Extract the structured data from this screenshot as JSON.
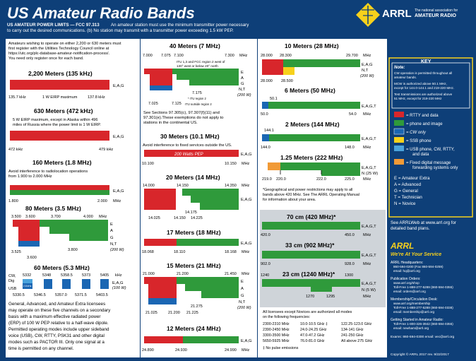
{
  "header": {
    "title": "US Amateur Radio Bands",
    "limits_label": "US AMATEUR POWER LIMITS — FCC 97.313",
    "limits_text_1": "An amateur station must use the minimum transmitter power necessary",
    "limits_text_2": "to carry out the desired communications.  (b) No station may transmit with a transmitter power exceeding 1.5 kW PEP.",
    "logo": "ARRL",
    "org_line1": "The national association for",
    "org_line2": "AMATEUR RADIO"
  },
  "colors": {
    "rtty": "#d8262b",
    "phone": "#2f9a3b",
    "cw": "#1a66b3",
    "ssb": "#f7d11c",
    "usb": "#4aa3dc",
    "digital": "#f19a36",
    "page": "#0e3f78",
    "panel": "#ffffff",
    "accent": "#f7d11c"
  },
  "intro": [
    "Amateurs wishing to operate on either 2,200 or 630 meters must",
    "first register with the Utilities Technology Council online at",
    "https://utc.org/plc-database-amateur-notification-process/.",
    "You need only register once for each band."
  ],
  "bands": {
    "m2200": {
      "title": "2,200 Meters (135 kHz)",
      "lo": "135.7 kHz",
      "hi": "137.8 kHz",
      "note": "1 W EIRP maximum",
      "lic": "E,A,G"
    },
    "m630": {
      "title": "630 Meters (472 kHz)",
      "note1": "5 W EIRP maximum, except in Alaska within 496",
      "note2": "miles of Russia where the power limit is 1 W EIRP.",
      "lo": "472 kHz",
      "hi": "479 kHz",
      "lic": "E,A,G"
    },
    "m160": {
      "title": "160 Meters (1.8 MHz)",
      "note1": "Avoid interference to radiolocation operations",
      "note2": "from 1.900 to 2.000 MHz",
      "lo": "1.800",
      "hi": "2.000",
      "unit": "MHz",
      "lic": "E,A,G"
    },
    "m80": {
      "title": "80 Meters (3.5 MHz)",
      "f1": "3.500",
      "f2": "3.600",
      "f3": "3.700",
      "f4": "4.000",
      "unit": "MHz",
      "lic": [
        "E",
        "A",
        "G",
        "N,T"
      ],
      "power": "(200 W)",
      "low1": "3.525",
      "low2": "3.600",
      "low3": "3.800"
    },
    "m60": {
      "title": "60 Meters (5.3 MHz)",
      "cw": "CW,",
      "dig": "Dig",
      "usb": "USB",
      "ch": [
        "5332",
        "5348",
        "5358.5",
        "5373",
        "5405"
      ],
      "unit": "kHz",
      "low": [
        "5330.5",
        "5346.5",
        "5357.0",
        "5371.5",
        "5403.5"
      ],
      "lic": "E,A,G",
      "power": "(100 W)",
      "tag": "2.8 kHz",
      "text": [
        "General, Advanced, and Amateur Extra licensees",
        "may operate on these five channels on a secondary",
        "basis with a maximum effective radiated power",
        "(ERP) of 100 W PEP relative to a half-wave dipole.",
        "Permitted operating modes include upper sideband",
        "voice (USB), CW, RTTY, PSK31 and other digital",
        "modes such as PACTOR III. Only one signal at a",
        "time is permitted on any channel."
      ]
    },
    "m40": {
      "title": "40 Meters (7 MHz)",
      "f1": "7.000",
      "f2": "7.075",
      "f3": "7.100",
      "f4": "7.300",
      "unit": "MHz",
      "itu": [
        "ITU 1,3 and FCC region 2 west of",
        "130° west or below 20° north"
      ],
      "lic": [
        "E",
        "A",
        "G",
        "N,T"
      ],
      "power": "(200 W)",
      "low1": "7.025",
      "low2": "7.125",
      "low3": "7.175",
      "notr2": "* ITU region 2",
      "out": "ITU outside region 2",
      "text": [
        "See Sections 97.305(c), 97.307(f)(11) and",
        "97.301(e).These exemptions do not apply to",
        "stations in the continental US."
      ]
    },
    "m30": {
      "title": "30 Meters (10.1 MHz)",
      "note": "Avoid interference to fixed services outside the US.",
      "pep": "200 Watts PEP",
      "lo": "10.100",
      "hi": "10.150",
      "unit": "MHz",
      "lic": "E,A,G"
    },
    "m20": {
      "title": "20 Meters (14 MHz)",
      "f1": "14.000",
      "f2": "14.150",
      "f3": "14.350",
      "unit": "MHz",
      "lic": "E,A,G",
      "low1": "14.025",
      "low2": "14.150",
      "low3": "14.225",
      "low4": "14.175"
    },
    "m17": {
      "title": "17 Meters (18 MHz)",
      "lo": "18.068",
      "mid": "18.110",
      "hi": "18.168",
      "unit": "MHz",
      "lic": "E,A,G"
    },
    "m15": {
      "title": "15 Meters (21 MHz)",
      "f1": "21.000",
      "f2": "21.200",
      "f3": "21.450",
      "unit": "MHz",
      "lic": [
        "E",
        "A",
        "G",
        "N,T"
      ],
      "power": "(200 W)",
      "low1": "21.025",
      "low2": "21.200",
      "low3": "21.225",
      "low4": "21.275"
    },
    "m12": {
      "title": "12 Meters (24 MHz)",
      "lo": "24.890",
      "mid": "24.930",
      "hi": "24.990",
      "unit": "MHz",
      "lic": "E,A,G"
    },
    "m10": {
      "title": "10 Meters (28 MHz)",
      "f1": "28.000",
      "f2": "28.300",
      "f3": "29.700",
      "unit": "MHz",
      "lic": [
        "E,A,G",
        "N,T"
      ],
      "power": "(200 W)",
      "low1": "28.000",
      "low2": "28.500"
    },
    "m6": {
      "title": "6 Meters (50 MHz)",
      "f1": "50.1",
      "lo": "50.0",
      "hi": "54.0",
      "unit": "MHz",
      "lic": "E,A,G,T"
    },
    "m2": {
      "title": "2 Meters (144 MHz)",
      "f1": "144.1",
      "lo": "144.0",
      "hi": "148.0",
      "unit": "MHz",
      "lic": "E,A,G,T"
    },
    "m125": {
      "title": "1.25 Meters (222 MHz)",
      "f1": "219.0",
      "f2": "220.0",
      "f3": "222.0",
      "f4": "225.0",
      "unit": "MHz",
      "lic": [
        "E,A,G,T",
        "N (25 W)"
      ]
    },
    "m70": {
      "title": "70 cm (420 MHz)*",
      "lo": "420.0",
      "hi": "450.0",
      "unit": "MHz",
      "lic": "E,A,G,T"
    },
    "m33": {
      "title": "33 cm (902 MHz)*",
      "lo": "902.0",
      "hi": "928.0",
      "unit": "MHz",
      "lic": "E,A,G,T"
    },
    "m23": {
      "title": "23 cm (1240 MHz)*",
      "lo": "1240",
      "f2": "1270",
      "f3": "1295",
      "hi": "1300",
      "unit": "MHz",
      "lic": [
        "E,A,G,T",
        "N (5 W)"
      ]
    }
  },
  "geo_note": [
    "*Geographical and power restrictions may apply to all",
    "bands above 420 MHz. See The ARRL Operating Manual",
    "for information about your area."
  ],
  "above": {
    "title1": "All licensees except Novices are authorized all modes",
    "title2": "on the following frequencies:",
    "rows": [
      [
        "2300-2310 MHz",
        "10.0-10.5 GHz ‡",
        "122.25-123.0 GHz"
      ],
      [
        "2390-2450 MHz",
        "24.0-24.25 GHz",
        "134-141 GHz"
      ],
      [
        "3300-3500 MHz",
        "47.0-47.2 GHz",
        "241-250 GHz"
      ],
      [
        "5650-5925 MHz",
        "76.0-81.0 GHz",
        "All above 275 GHz"
      ]
    ],
    "foot": "‡ No pulse emissions"
  },
  "key": {
    "title": "KEY",
    "note_title": "Note:",
    "notes": [
      "CW operation is permitted throughout all",
      "amateur bands.",
      "MCW is authorized above 50.1 MHz,",
      "except for 144.0-144.1 and 219-220 MHz.",
      "Test transmissions are authorized above",
      "51 MHz, except for 219-220 MHz"
    ],
    "items": [
      "= RTTY and data",
      "= phone and image",
      "= CW only",
      "= SSB phone",
      "= USB phone, CW, RTTY,",
      "and data",
      "= Fixed digital message",
      "forwarding systems only"
    ],
    "classes": [
      "E = Amateur Extra",
      "A = Advanced",
      "G = General",
      "T = Technician",
      "N = Novice"
    ],
    "see1": "See ARRLWeb at www.arrl.org for",
    "see2": "detailed band plans."
  },
  "service": {
    "title": "ARRL",
    "subtitle": "We're At Your Service",
    "hq": "ARRL Headquarters:",
    "hq_phone": "860-594-0200 (Fax 860-594-0259)",
    "hq_email": "email: hq@arrl.org",
    "pub": "Publication Orders:",
    "pub_web": "www.arrl.org/shop",
    "pub_phone": "Toll-Free 1-888-277-5289 (860-594-0355)",
    "pub_email": "email: orders@arrl.org",
    "mem": "Membership/Circulation Desk:",
    "mem_web": "www.arrl.org/membership",
    "mem_phone": "Toll-Free 1-888-277-5289 (860-594-0338)",
    "mem_email": "email: membership@arrl.org",
    "gs": "Getting Started in Amateur Radio:",
    "gs_phone": "Toll-Free 1-800-326-3942 (860-594-0355)",
    "gs_email": "email: newham@arrl.org",
    "exams": "Exams: 860-594-0300  email: vec@arrl.org",
    "copyright": "Copyright © ARRL 2017  rev. 9/22/2017"
  }
}
